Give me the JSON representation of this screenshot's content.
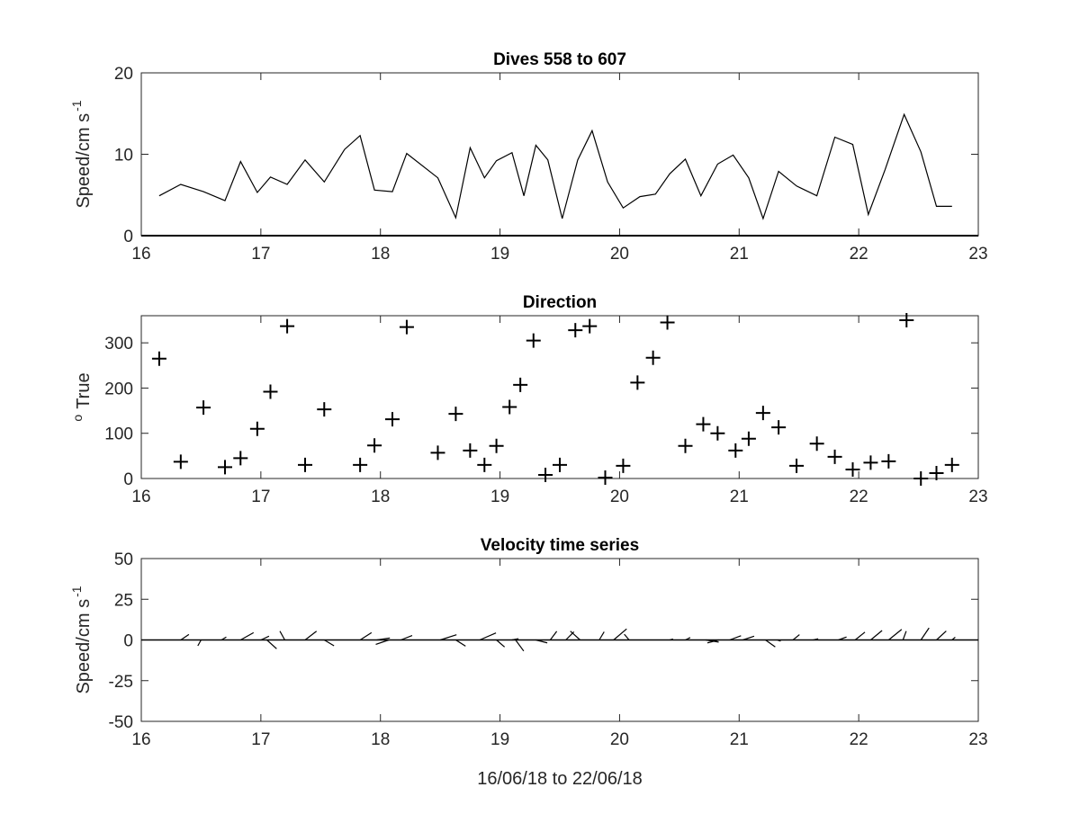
{
  "figure": {
    "xlabel": "16/06/18 to 22/06/18"
  },
  "chart_data": [
    {
      "type": "line",
      "title": "Dives 558 to 607",
      "ylabel": "Speed/cm s",
      "ylabel_superscript": "-1",
      "xlim": [
        16,
        23
      ],
      "ylim": [
        0,
        20
      ],
      "xticks": [
        "16",
        "17",
        "18",
        "19",
        "20",
        "21",
        "22",
        "23"
      ],
      "yticks": [
        "0",
        "10",
        "20"
      ],
      "grid": false,
      "x": [
        16.15,
        16.33,
        16.52,
        16.7,
        16.83,
        16.97,
        17.08,
        17.22,
        17.37,
        17.53,
        17.7,
        17.83,
        17.95,
        18.1,
        18.22,
        18.48,
        18.63,
        18.75,
        18.87,
        18.97,
        19.1,
        19.2,
        19.3,
        19.4,
        19.52,
        19.65,
        19.77,
        19.9,
        20.03,
        20.17,
        20.3,
        20.42,
        20.55,
        20.68,
        20.82,
        20.95,
        21.08,
        21.2,
        21.33,
        21.48,
        21.65,
        21.8,
        21.95,
        22.08,
        22.22,
        22.38,
        22.52,
        22.65,
        22.78
      ],
      "y": [
        4.9,
        6.3,
        5.4,
        4.3,
        9.1,
        5.3,
        7.2,
        6.3,
        9.3,
        6.6,
        10.6,
        12.3,
        5.6,
        5.4,
        10.1,
        7.1,
        2.2,
        10.8,
        7.1,
        9.2,
        10.2,
        4.9,
        11.1,
        9.3,
        2.1,
        9.3,
        12.9,
        6.6,
        3.4,
        4.8,
        5.1,
        7.6,
        9.4,
        4.9,
        8.8,
        9.9,
        7.1,
        2.1,
        7.9,
        6.1,
        4.9,
        12.1,
        11.2,
        2.6,
        8.1,
        14.9,
        10.3,
        3.6,
        3.6
      ]
    },
    {
      "type": "scatter",
      "marker": "+",
      "title": "Direction",
      "ylabel": "True",
      "ylabel_prefix_superscript": "o",
      "xlim": [
        16,
        23
      ],
      "ylim": [
        0,
        360
      ],
      "xticks": [
        "16",
        "17",
        "18",
        "19",
        "20",
        "21",
        "22",
        "23"
      ],
      "yticks": [
        "0",
        "100",
        "200",
        "300"
      ],
      "grid": false,
      "x": [
        16.15,
        16.33,
        16.52,
        16.7,
        16.83,
        16.97,
        17.08,
        17.22,
        17.37,
        17.53,
        17.83,
        17.95,
        18.1,
        18.22,
        18.48,
        18.63,
        18.75,
        18.87,
        18.97,
        19.08,
        19.17,
        19.28,
        19.38,
        19.5,
        19.63,
        19.75,
        19.88,
        20.03,
        20.15,
        20.28,
        20.4,
        20.55,
        20.7,
        20.82,
        20.97,
        21.08,
        21.2,
        21.33,
        21.48,
        21.65,
        21.8,
        21.95,
        22.1,
        22.25,
        22.4,
        22.52,
        22.65,
        22.78
      ],
      "y": [
        265,
        37,
        157,
        25,
        45,
        110,
        192,
        337,
        30,
        153,
        30,
        73,
        131,
        335,
        57,
        143,
        62,
        30,
        72,
        158,
        207,
        305,
        8,
        30,
        328,
        337,
        2,
        28,
        212,
        267,
        345,
        72,
        120,
        100,
        62,
        88,
        145,
        113,
        28,
        77,
        48,
        20,
        35,
        38,
        350,
        0,
        12,
        30
      ]
    },
    {
      "type": "quiver",
      "title": "Velocity time series",
      "ylabel": "Speed/cm s",
      "ylabel_superscript": "-1",
      "xlim": [
        16,
        23
      ],
      "ylim": [
        -50,
        50
      ],
      "xticks": [
        "16",
        "17",
        "18",
        "19",
        "20",
        "21",
        "22",
        "23"
      ],
      "yticks": [
        "-50",
        "-25",
        "0",
        "25",
        "50"
      ],
      "grid": false,
      "x": [
        16.33,
        16.5,
        16.67,
        16.83,
        17.0,
        17.05,
        17.2,
        17.37,
        17.53,
        17.83,
        17.97,
        18.07,
        18.17,
        18.5,
        18.63,
        18.83,
        18.97,
        19.1,
        19.13,
        19.3,
        19.42,
        19.55,
        19.67,
        19.83,
        19.95,
        20.08,
        20.42,
        20.55,
        20.72,
        20.83,
        20.92,
        21.03,
        21.22,
        21.32,
        21.45,
        21.62,
        21.83,
        21.97,
        22.1,
        22.25,
        22.37,
        22.52,
        22.65,
        22.78
      ],
      "u": [
        5,
        -2,
        3,
        8,
        5,
        6,
        -3,
        7,
        6,
        7,
        8,
        -8,
        7,
        10,
        6,
        10,
        5,
        4,
        5,
        7,
        4,
        5,
        -6,
        3,
        8,
        -3,
        2,
        3,
        8,
        -7,
        7,
        7,
        6,
        2,
        4,
        3,
        5,
        6,
        7,
        8,
        2,
        5,
        6,
        2
      ],
      "v": [
        3.4,
        -3.6,
        1.8,
        4.5,
        2.3,
        -5.4,
        5.4,
        5.4,
        -3.6,
        4.5,
        1.2,
        -2.7,
        2.7,
        3.2,
        -3.8,
        4.3,
        -4.3,
        0.8,
        -6.8,
        -1.8,
        5.3,
        5.0,
        5.4,
        5.0,
        6.8,
        3.5,
        0.6,
        1.5,
        -1.3,
        -1.8,
        2.6,
        2.3,
        -4.3,
        -0.7,
        3.3,
        0.7,
        1.8,
        4.8,
        5.8,
        6.5,
        5.4,
        7.4,
        5.5,
        1.7
      ]
    }
  ]
}
